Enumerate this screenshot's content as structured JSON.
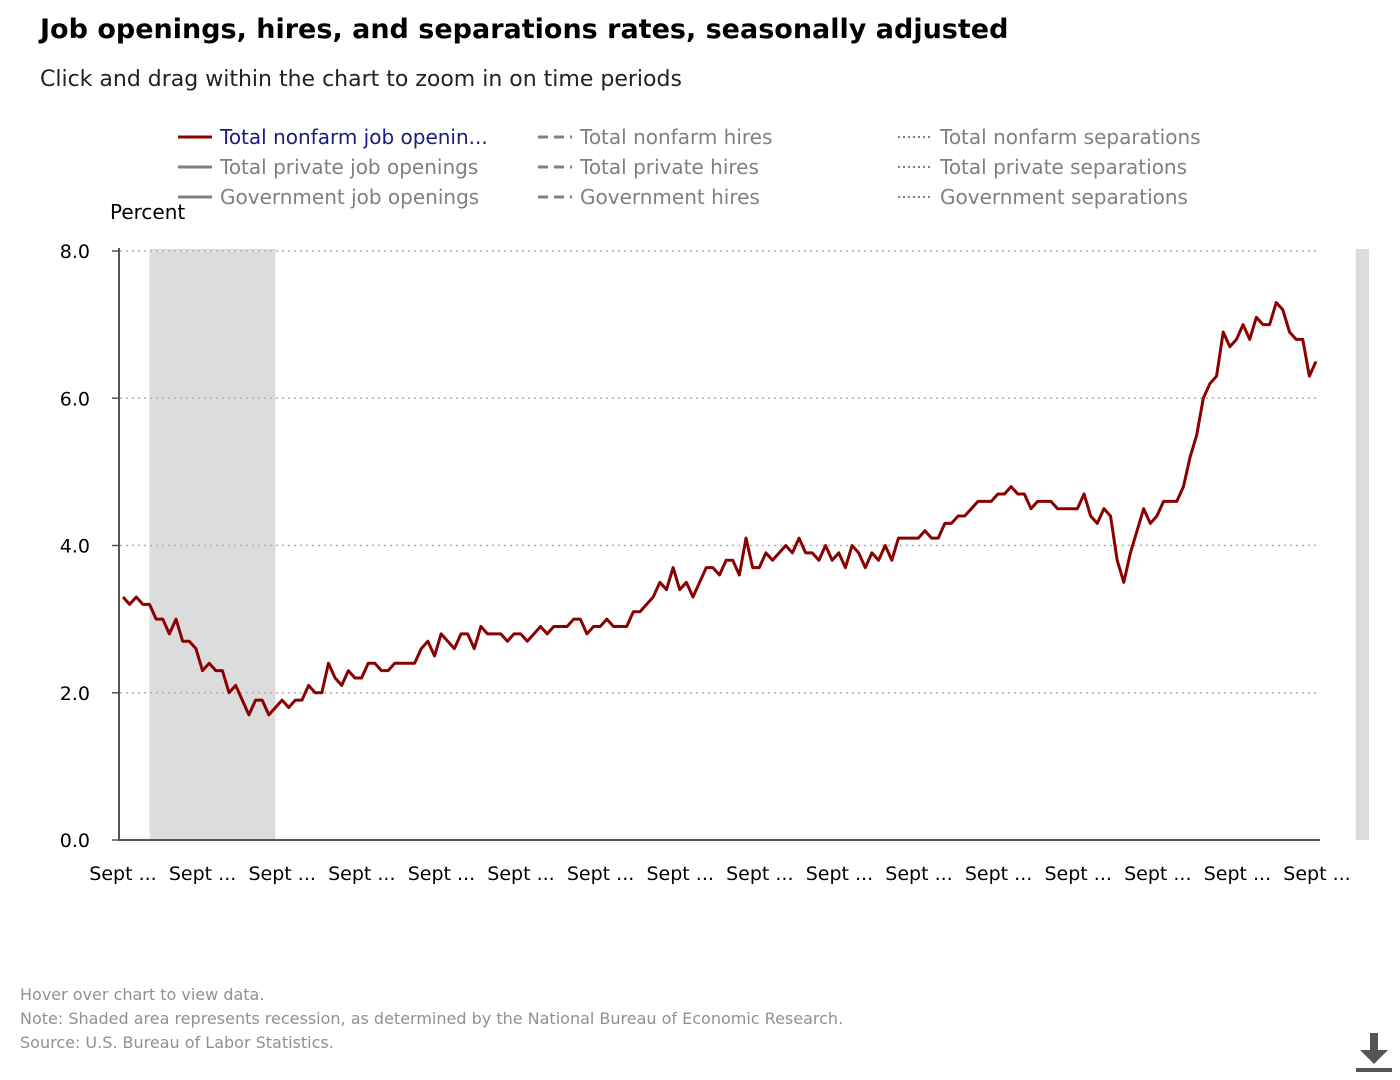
{
  "title": "Job openings, hires, and separations rates, seasonally adjusted",
  "subtitle": "Click and drag within the chart to zoom in on time periods",
  "legend": [
    {
      "label": "Total nonfarm job openin...",
      "style": "solid",
      "color": "#8b0000",
      "active": true
    },
    {
      "label": "Total private job openings",
      "style": "solid",
      "color": "#808080",
      "active": false
    },
    {
      "label": "Government job openings",
      "style": "solid",
      "color": "#808080",
      "active": false
    },
    {
      "label": "Total nonfarm hires",
      "style": "dashed",
      "color": "#808080",
      "active": false
    },
    {
      "label": "Total private hires",
      "style": "dashed",
      "color": "#808080",
      "active": false
    },
    {
      "label": "Government hires",
      "style": "dashed",
      "color": "#808080",
      "active": false
    },
    {
      "label": "Total nonfarm separations",
      "style": "dotted",
      "color": "#808080",
      "active": false
    },
    {
      "label": "Total private separations",
      "style": "dotted",
      "color": "#808080",
      "active": false
    },
    {
      "label": "Government separations",
      "style": "dotted",
      "color": "#808080",
      "active": false
    }
  ],
  "chart_data": {
    "type": "line",
    "ylabel": "Percent",
    "ylim": [
      0,
      8
    ],
    "yticks": [
      "0.0",
      "2.0",
      "4.0",
      "6.0",
      "8.0"
    ],
    "grid": true,
    "xtick_labels": [
      "Sept ...",
      "Sept ...",
      "Sept ...",
      "Sept ...",
      "Sept ...",
      "Sept ...",
      "Sept ...",
      "Sept ...",
      "Sept ...",
      "Sept ...",
      "Sept ...",
      "Sept ...",
      "Sept ...",
      "Sept ...",
      "Sept ...",
      "Sept ..."
    ],
    "recessions": [
      [
        4,
        23
      ],
      [
        186,
        188
      ]
    ],
    "series": [
      {
        "name": "Total nonfarm job openings",
        "color": "#8b0000",
        "values": [
          3.3,
          3.2,
          3.3,
          3.2,
          3.2,
          3.0,
          3.0,
          2.8,
          3.0,
          2.7,
          2.7,
          2.6,
          2.3,
          2.4,
          2.3,
          2.3,
          2.0,
          2.1,
          1.9,
          1.7,
          1.9,
          1.9,
          1.7,
          1.8,
          1.9,
          1.8,
          1.9,
          1.9,
          2.1,
          2.0,
          2.0,
          2.4,
          2.2,
          2.1,
          2.3,
          2.2,
          2.2,
          2.4,
          2.4,
          2.3,
          2.3,
          2.4,
          2.4,
          2.4,
          2.4,
          2.6,
          2.7,
          2.5,
          2.8,
          2.7,
          2.6,
          2.8,
          2.8,
          2.6,
          2.9,
          2.8,
          2.8,
          2.8,
          2.7,
          2.8,
          2.8,
          2.7,
          2.8,
          2.9,
          2.8,
          2.9,
          2.9,
          2.9,
          3.0,
          3.0,
          2.8,
          2.9,
          2.9,
          3.0,
          2.9,
          2.9,
          2.9,
          3.1,
          3.1,
          3.2,
          3.3,
          3.5,
          3.4,
          3.7,
          3.4,
          3.5,
          3.3,
          3.5,
          3.7,
          3.7,
          3.6,
          3.8,
          3.8,
          3.6,
          4.1,
          3.7,
          3.7,
          3.9,
          3.8,
          3.9,
          4.0,
          3.9,
          4.1,
          3.9,
          3.9,
          3.8,
          4.0,
          3.8,
          3.9,
          3.7,
          4.0,
          3.9,
          3.7,
          3.9,
          3.8,
          4.0,
          3.8,
          4.1,
          4.1,
          4.1,
          4.1,
          4.2,
          4.1,
          4.1,
          4.3,
          4.3,
          4.4,
          4.4,
          4.5,
          4.6,
          4.6,
          4.6,
          4.7,
          4.7,
          4.8,
          4.7,
          4.7,
          4.5,
          4.6,
          4.6,
          4.6,
          4.5,
          4.5,
          4.5,
          4.5,
          4.7,
          4.4,
          4.3,
          4.5,
          4.4,
          3.8,
          3.5,
          3.9,
          4.2,
          4.5,
          4.3,
          4.4,
          4.6,
          4.6,
          4.6,
          4.8,
          5.2,
          5.5,
          6.0,
          6.2,
          6.3,
          6.9,
          6.7,
          6.8,
          7.0,
          6.8,
          7.1,
          7.0,
          7.0,
          7.3,
          7.2,
          6.9,
          6.8,
          6.8,
          6.3,
          6.5
        ]
      }
    ]
  },
  "footnotes": [
    "Hover over chart to view data.",
    "Note: Shaded area represents recession, as determined by the National Bureau of Economic Research.",
    "Source: U.S. Bureau of Labor Statistics."
  ],
  "icons": {
    "download": "download-icon"
  }
}
